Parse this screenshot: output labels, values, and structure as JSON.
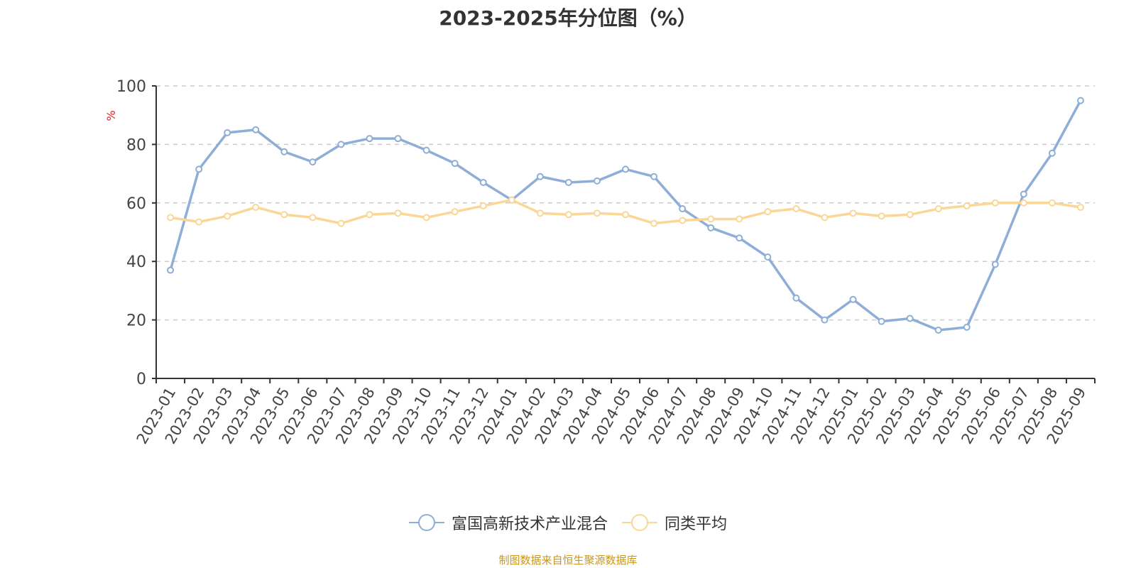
{
  "chart_data": {
    "type": "line",
    "title": "2023-2025年分位图（%）",
    "ylabel": "%",
    "ylim": [
      0,
      100
    ],
    "yticks": [
      0,
      20,
      40,
      60,
      80,
      100
    ],
    "grid": true,
    "legend_position": "bottom-center",
    "source": "制图数据来自恒生聚源数据库",
    "categories": [
      "2023-01",
      "2023-02",
      "2023-03",
      "2023-04",
      "2023-05",
      "2023-06",
      "2023-07",
      "2023-08",
      "2023-09",
      "2023-10",
      "2023-11",
      "2023-12",
      "2024-01",
      "2024-02",
      "2024-03",
      "2024-04",
      "2024-05",
      "2024-06",
      "2024-07",
      "2024-08",
      "2024-09",
      "2024-10",
      "2024-11",
      "2024-12",
      "2025-01",
      "2025-02",
      "2025-03",
      "2025-04",
      "2025-05",
      "2025-06",
      "2025-07",
      "2025-08",
      "2025-09"
    ],
    "series": [
      {
        "name": "富国高新技术产业混合",
        "color": "#8eaed8",
        "values": [
          37,
          71.5,
          84,
          85,
          77.5,
          74,
          80,
          82,
          82,
          78,
          73.5,
          67,
          61,
          69,
          67,
          67.5,
          71.5,
          69,
          58,
          51.5,
          48,
          41.5,
          27.5,
          20,
          27,
          19.5,
          20.5,
          16.5,
          17.5,
          39,
          63,
          77,
          95
        ]
      },
      {
        "name": "同类平均",
        "color": "#fad797",
        "values": [
          55,
          53.5,
          55.5,
          58.5,
          56,
          55,
          53,
          56,
          56.5,
          55,
          57,
          59,
          61,
          56.5,
          56,
          56.5,
          56,
          53,
          54,
          54.5,
          54.5,
          57,
          58,
          55,
          56.5,
          55.5,
          56,
          58,
          59,
          60,
          60,
          60,
          58.5
        ]
      }
    ]
  }
}
